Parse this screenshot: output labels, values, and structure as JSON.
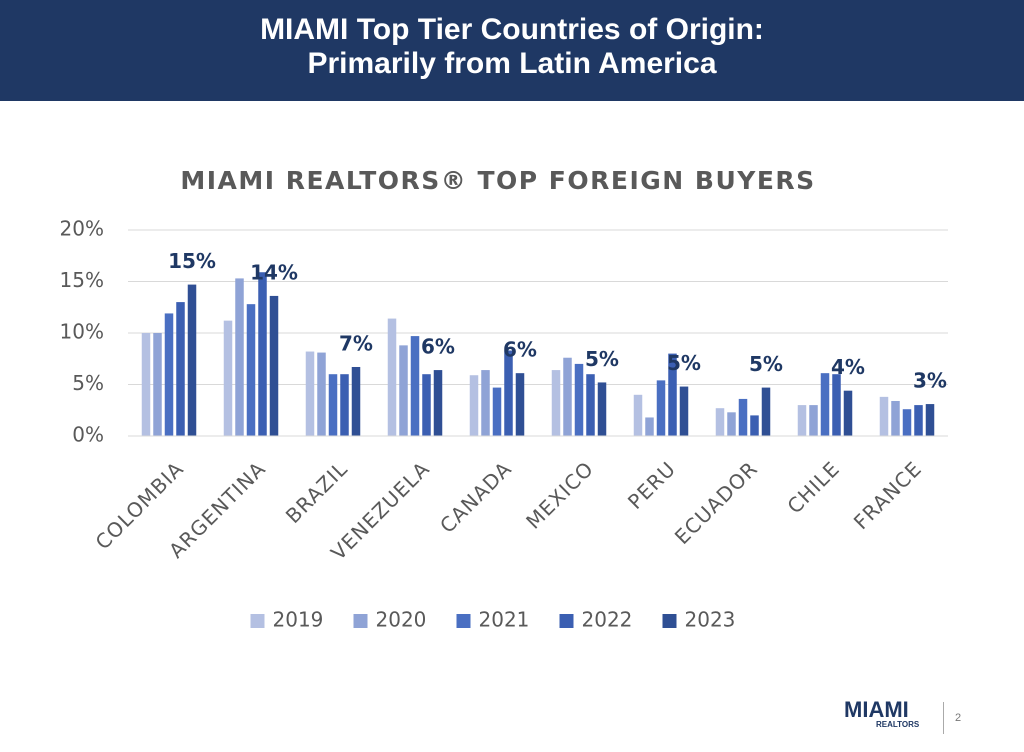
{
  "header": {
    "title_lines": [
      "MIAMI Top Tier Countries of Origin:",
      "Primarily from Latin America"
    ]
  },
  "chart_data": {
    "type": "bar",
    "title": "MIAMI REALTORS® TOP FOREIGN BUYERS",
    "categories": [
      "COLOMBIA",
      "ARGENTINA",
      "BRAZIL",
      "VENEZUELA",
      "CANADA",
      "MEXICO",
      "PERU",
      "ECUADOR",
      "CHILE",
      "FRANCE"
    ],
    "series": [
      {
        "name": "2019",
        "color": "#b4c0e2",
        "values": [
          10.0,
          11.2,
          8.2,
          11.4,
          5.9,
          6.4,
          4.0,
          2.7,
          3.0,
          3.8
        ]
      },
      {
        "name": "2020",
        "color": "#8fa3d6",
        "values": [
          10.0,
          15.3,
          8.1,
          8.8,
          6.4,
          7.6,
          1.8,
          2.3,
          3.0,
          3.4
        ]
      },
      {
        "name": "2021",
        "color": "#4a6fc2",
        "values": [
          11.9,
          12.8,
          6.0,
          9.7,
          4.7,
          7.0,
          5.4,
          3.6,
          6.1,
          2.6
        ]
      },
      {
        "name": "2022",
        "color": "#3b5fb2",
        "values": [
          13.0,
          15.9,
          6.0,
          6.0,
          8.3,
          6.0,
          8.0,
          2.0,
          6.0,
          3.0
        ]
      },
      {
        "name": "2023",
        "color": "#2f4f94",
        "values": [
          14.7,
          13.6,
          6.7,
          6.4,
          6.1,
          5.2,
          4.8,
          4.7,
          4.4,
          3.1
        ],
        "value_labels": [
          "15%",
          "14%",
          "7%",
          "6%",
          "6%",
          "5%",
          "5%",
          "5%",
          "4%",
          "3%"
        ]
      }
    ],
    "ylim": [
      0,
      20
    ],
    "yticks": [
      {
        "value": 0,
        "label": "0%"
      },
      {
        "value": 5,
        "label": "5%"
      },
      {
        "value": 10,
        "label": "10%"
      },
      {
        "value": 15,
        "label": "15%"
      },
      {
        "value": 20,
        "label": "20%"
      }
    ],
    "grid": true,
    "legend": "bottom"
  },
  "footer": {
    "logo": "MIAMI",
    "logo_sub": "REALTORS",
    "page": "2"
  }
}
